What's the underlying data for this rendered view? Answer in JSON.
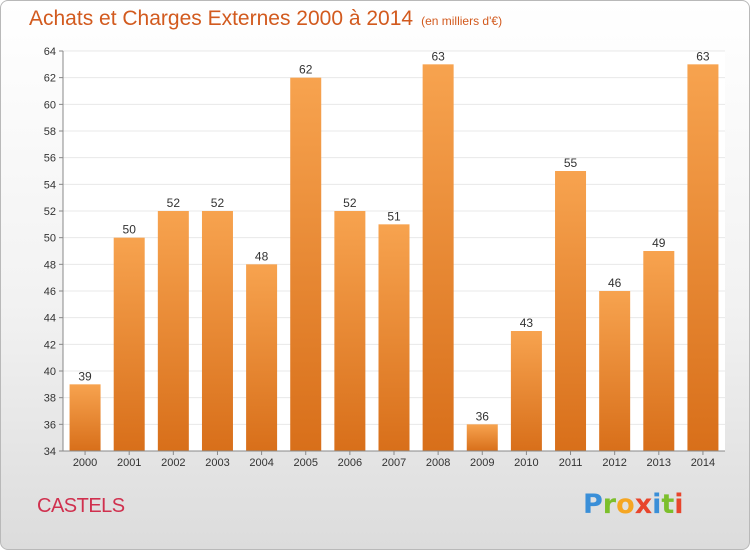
{
  "header": {
    "title": "Achats et Charges Externes 2000 à 2014",
    "subtitle": "(en milliers d'€)"
  },
  "footer": {
    "commune": "CASTELS",
    "brand_letters": [
      "P",
      "r",
      "o",
      "x",
      "i",
      "t",
      "i"
    ]
  },
  "colors": {
    "bar_top": "#f7a34f",
    "bar_bottom": "#d86f1a",
    "title": "#d25a1e",
    "commune": "#d0304e",
    "grid": "#e8e8e8"
  },
  "chart_data": {
    "type": "bar",
    "title": "Achats et Charges Externes 2000 à 2014",
    "subtitle": "(en milliers d'€)",
    "categories": [
      "2000",
      "2001",
      "2002",
      "2003",
      "2004",
      "2005",
      "2006",
      "2007",
      "2008",
      "2009",
      "2010",
      "2011",
      "2012",
      "2013",
      "2014"
    ],
    "values": [
      39,
      50,
      52,
      52,
      48,
      62,
      52,
      51,
      63,
      36,
      43,
      55,
      46,
      49,
      63
    ],
    "ylim": [
      34,
      64
    ],
    "yticks": [
      34,
      36,
      38,
      40,
      42,
      44,
      46,
      48,
      50,
      52,
      54,
      56,
      58,
      60,
      62,
      64
    ],
    "grid": true,
    "data_labels": true,
    "xlabel": "",
    "ylabel": ""
  }
}
